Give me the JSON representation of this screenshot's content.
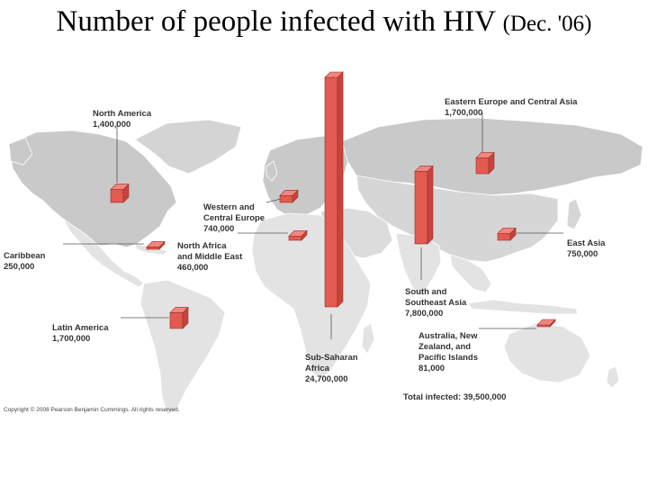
{
  "title": {
    "main": "Number of people infected with HIV",
    "sub": "(Dec. '06)"
  },
  "regions": [
    {
      "id": "north-america",
      "name": "North America",
      "value": "1,400,000",
      "count": 1400000
    },
    {
      "id": "eastern-europe-central-asia",
      "name": "Eastern Europe and Central Asia",
      "value": "1,700,000",
      "count": 1700000
    },
    {
      "id": "western-central-europe",
      "name": "Western and\nCentral Europe",
      "value": "740,000",
      "count": 740000
    },
    {
      "id": "north-africa-middle-east",
      "name": "North Africa\nand Middle East",
      "value": "460,000",
      "count": 460000
    },
    {
      "id": "caribbean",
      "name": "Caribbean",
      "value": "250,000",
      "count": 250000
    },
    {
      "id": "east-asia",
      "name": "East Asia",
      "value": "750,000",
      "count": 750000
    },
    {
      "id": "south-southeast-asia",
      "name": "South and\nSoutheast Asia",
      "value": "7,800,000",
      "count": 7800000
    },
    {
      "id": "latin-america",
      "name": "Latin America",
      "value": "1,700,000",
      "count": 1700000
    },
    {
      "id": "australia-nz-pacific",
      "name": "Australia, New\nZealand, and\nPacific Islands",
      "value": "81,000",
      "count": 81000
    },
    {
      "id": "sub-saharan-africa",
      "name": "Sub-Saharan\nAfrica",
      "value": "24,700,000",
      "count": 24700000
    }
  ],
  "total": "Total infected: 39,500,000",
  "copyright": "Copyright © 2008 Pearson Benjamin Cummings. All rights reserved.",
  "colors": {
    "bar_front": "#e25a50",
    "bar_side": "#c7433b",
    "bar_top": "#f0877f",
    "bar_edge": "#9c2f2a",
    "land_north": "#c9c9c9",
    "land_south": "#e3e3e3",
    "border": "#ffffff"
  }
}
